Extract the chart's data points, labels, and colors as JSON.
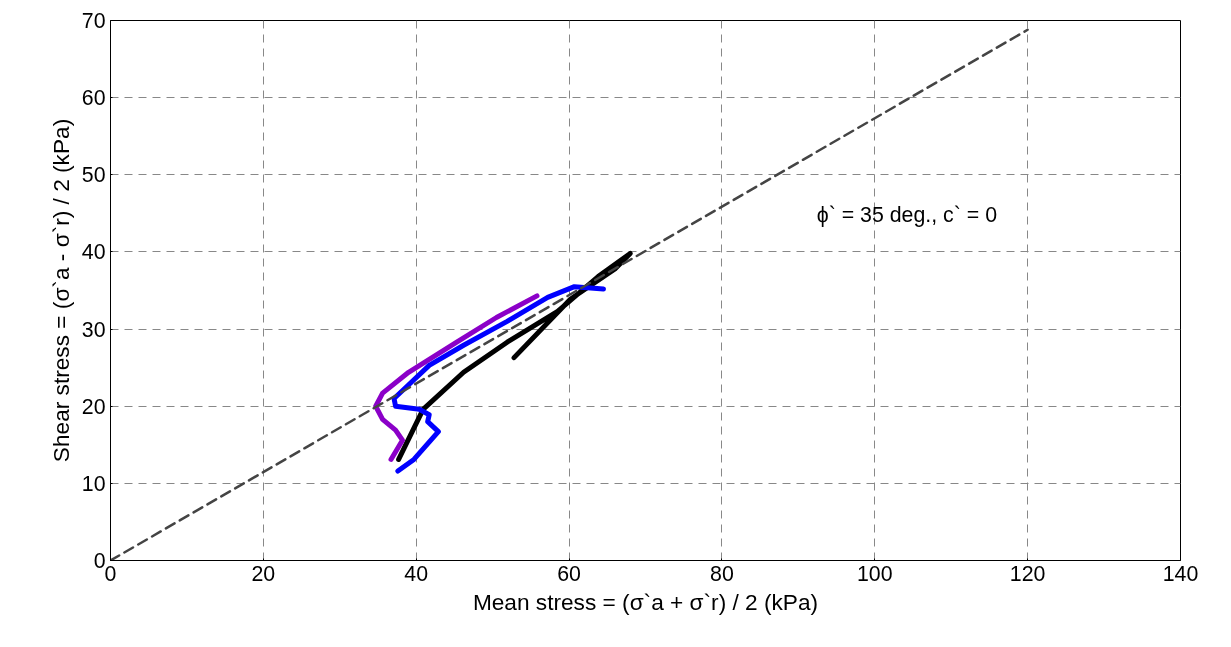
{
  "chart_data": {
    "type": "line",
    "xlabel": "Mean stress = (σ`a + σ`r) / 2 (kPa)",
    "ylabel": "Shear stress = (σ`a - σ`r) / 2 (kPa)",
    "xlim": [
      0,
      140
    ],
    "ylim": [
      0,
      70
    ],
    "xticks": [
      0,
      20,
      40,
      60,
      80,
      100,
      120,
      140
    ],
    "yticks": [
      0,
      10,
      20,
      30,
      40,
      50,
      60,
      70
    ],
    "grid": true,
    "line_style": "solid",
    "annotations": [
      "ϕ` = 35 deg., c` = 0"
    ],
    "series": [
      {
        "color": "#000000",
        "x": [
          37.7,
          40.9,
          46.2,
          51.9,
          58.5,
          63.8,
          68.0,
          66.0,
          60.2,
          52.8
        ],
        "values": [
          13.1,
          19.6,
          24.4,
          28.3,
          32.3,
          36.8,
          39.8,
          37.8,
          33.9,
          26.3
        ]
      },
      {
        "color": "#8b00c8",
        "x": [
          36.7,
          38.2,
          37.3,
          35.6,
          34.7,
          35.6,
          39.0,
          45.3,
          50.5,
          55.8
        ],
        "values": [
          13.1,
          15.6,
          16.9,
          18.3,
          20.0,
          21.7,
          24.4,
          28.3,
          31.5,
          34.3
        ]
      },
      {
        "color": "#0000ff",
        "x": [
          37.6,
          39.7,
          42.9,
          41.5,
          41.7,
          40.4,
          37.3,
          37.1,
          38.6,
          41.7,
          46.2,
          51.9,
          57.2,
          60.7,
          64.5
        ],
        "values": [
          11.6,
          13.1,
          16.7,
          18.0,
          18.9,
          19.6,
          20.0,
          21.0,
          22.4,
          25.3,
          27.9,
          31.0,
          34.1,
          35.5,
          35.2
        ]
      },
      {
        "type": "line",
        "line_style": "dashed",
        "color": "#444444",
        "x": [
          0,
          120
        ],
        "values": [
          0,
          68.8
        ]
      }
    ]
  }
}
